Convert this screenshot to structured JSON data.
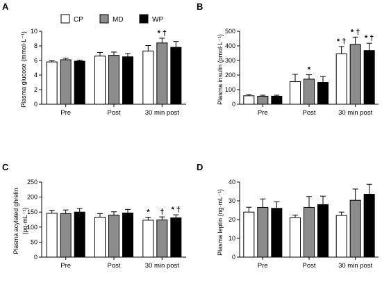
{
  "legend": {
    "entries": [
      {
        "label": "CP",
        "color": "#ffffff"
      },
      {
        "label": "MD",
        "color": "#8c8c8c"
      },
      {
        "label": "WP",
        "color": "#000000"
      }
    ]
  },
  "chart_data": [
    {
      "panel": "A",
      "type": "bar",
      "ylabel": "Plasma glucose (mmol·L⁻¹)",
      "categories": [
        "Pre",
        "Post",
        "30 min post"
      ],
      "ylim": [
        0,
        10
      ],
      "yticks": [
        "0",
        "2",
        "4",
        "6",
        "8",
        "10"
      ],
      "series": [
        {
          "name": "CP",
          "values": [
            5.8,
            6.6,
            7.3
          ],
          "errors": [
            0.15,
            0.5,
            0.75
          ]
        },
        {
          "name": "MD",
          "values": [
            6.1,
            6.7,
            8.4
          ],
          "errors": [
            0.2,
            0.45,
            0.65
          ]
        },
        {
          "name": "WP",
          "values": [
            5.9,
            6.5,
            7.8
          ],
          "errors": [
            0.15,
            0.45,
            0.8
          ]
        }
      ],
      "annotations": [
        {
          "category": "30 min post",
          "series": "MD",
          "text": "* †"
        }
      ]
    },
    {
      "panel": "B",
      "type": "bar",
      "ylabel": "Plasma insulin (pmol·L⁻¹)",
      "categories": [
        "Pre",
        "Post",
        "30 min post"
      ],
      "ylim": [
        0,
        500
      ],
      "yticks": [
        "0",
        "100",
        "200",
        "300",
        "400",
        "500"
      ],
      "series": [
        {
          "name": "CP",
          "values": [
            58,
            155,
            345
          ],
          "errors": [
            8,
            50,
            50
          ]
        },
        {
          "name": "MD",
          "values": [
            55,
            172,
            410
          ],
          "errors": [
            7,
            30,
            50
          ]
        },
        {
          "name": "WP",
          "values": [
            55,
            150,
            368
          ],
          "errors": [
            7,
            40,
            50
          ]
        }
      ],
      "annotations": [
        {
          "category": "Post",
          "series": "MD",
          "text": "*"
        },
        {
          "category": "30 min post",
          "series": "CP",
          "text": "* †"
        },
        {
          "category": "30 min post",
          "series": "MD",
          "text": "* †"
        },
        {
          "category": "30 min post",
          "series": "WP",
          "text": "* †"
        }
      ]
    },
    {
      "panel": "C",
      "type": "bar",
      "ylabel_line1": "Plasma acylated ghrelin",
      "ylabel_line2": "(pg·mL⁻¹)",
      "categories": [
        "Pre",
        "Post",
        "30 min post"
      ],
      "ylim": [
        0,
        250
      ],
      "yticks": [
        "0",
        "50",
        "100",
        "150",
        "200",
        "250"
      ],
      "series": [
        {
          "name": "CP",
          "values": [
            146,
            133,
            123
          ],
          "errors": [
            10,
            12,
            10
          ]
        },
        {
          "name": "MD",
          "values": [
            145,
            140,
            124
          ],
          "errors": [
            12,
            11,
            10
          ]
        },
        {
          "name": "WP",
          "values": [
            150,
            147,
            131
          ],
          "errors": [
            12,
            12,
            10
          ]
        }
      ],
      "annotations": [
        {
          "category": "30 min post",
          "series": "CP",
          "text": "*"
        },
        {
          "category": "30 min post",
          "series": "MD",
          "text": "†"
        },
        {
          "category": "30 min post",
          "series": "WP",
          "text": "* †"
        }
      ]
    },
    {
      "panel": "D",
      "type": "bar",
      "ylabel": "Plasma leptin (ng·mL⁻¹)",
      "categories": [
        "Pre",
        "Post",
        "30 min post"
      ],
      "ylim": [
        0,
        40
      ],
      "yticks": [
        "0",
        "10",
        "20",
        "30",
        "40"
      ],
      "series": [
        {
          "name": "CP",
          "values": [
            24,
            21,
            22.2
          ],
          "errors": [
            2.6,
            1.4,
            1.8
          ]
        },
        {
          "name": "MD",
          "values": [
            26.5,
            26.5,
            30.3
          ],
          "errors": [
            4.5,
            5.8,
            6
          ]
        },
        {
          "name": "WP",
          "values": [
            26,
            28,
            33.5
          ],
          "errors": [
            3.5,
            4.5,
            5.3
          ]
        }
      ],
      "annotations": []
    }
  ]
}
